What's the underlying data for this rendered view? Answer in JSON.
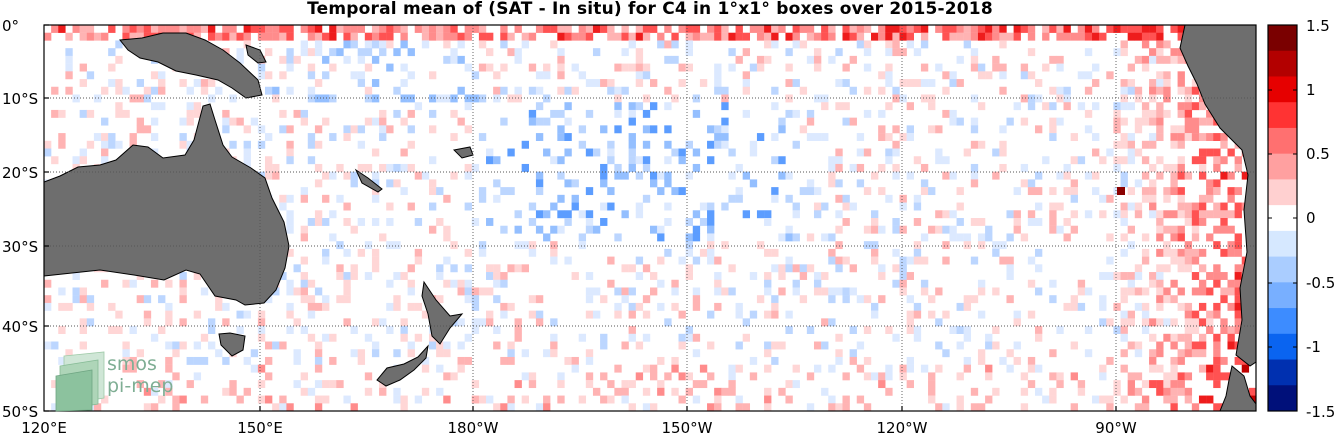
{
  "title": "Temporal mean of (SAT - In situ) for C4 in 1°x1° boxes over 2015-2018",
  "map": {
    "lat_ticks": [
      "0°",
      "10°S",
      "20°S",
      "30°S",
      "40°S",
      "50°S"
    ],
    "lon_ticks": [
      "120°E",
      "150°E",
      "180°W",
      "150°W",
      "120°W",
      "90°W"
    ],
    "lat_range": [
      -50,
      0
    ],
    "lon_range": [
      120,
      290
    ],
    "land_color": "#6e6e6e",
    "grid": "dotted"
  },
  "colorbar": {
    "ticks": [
      "1.5",
      "1",
      "0.5",
      "0",
      "-0.5",
      "-1",
      "-1.5"
    ],
    "range": [
      -1.5,
      1.5
    ],
    "colors_top_to_bottom": [
      "#7a0000",
      "#b30000",
      "#e60000",
      "#ff3333",
      "#ff7070",
      "#ffa0a0",
      "#ffd0d0",
      "#ffffff",
      "#d6e8ff",
      "#aacdff",
      "#78afff",
      "#3d8cff",
      "#0a64f0",
      "#0030b0",
      "#00107a"
    ]
  },
  "logo": {
    "line1": "smos",
    "line2": "pi-mep"
  }
}
